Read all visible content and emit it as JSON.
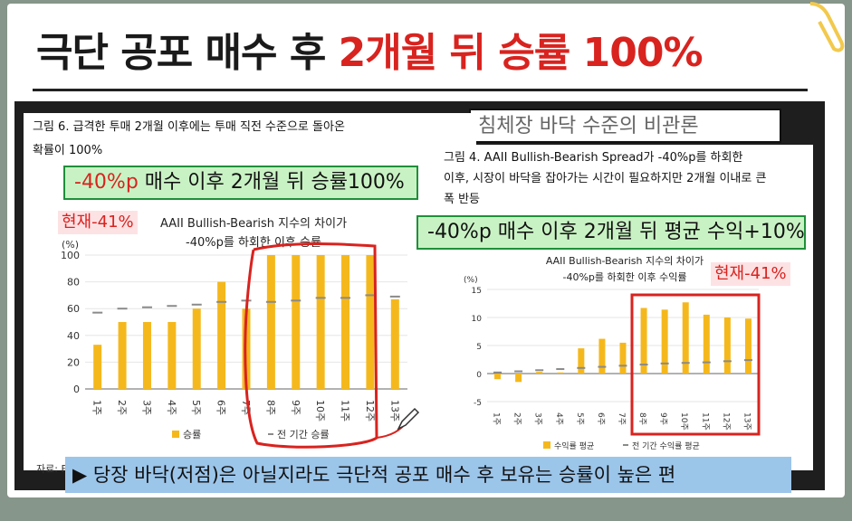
{
  "title": {
    "main": "극단 공포 매수 후 ",
    "highlight": "2개월 뒤 승률 100%"
  },
  "banner_partial": "침체장 바닥 수준의 비관론",
  "left": {
    "caption_line1": "그림 6. 급격한 투매 2개월 이후에는 투매 직전 수준으로 돌아온",
    "caption_line2": "확률이 100%",
    "green_note_red": "-40%p",
    "green_note_rest": " 매수 이후 2개월 뒤 승률100%",
    "current_tag": "현재-41%",
    "subtitle1": "AAII Bullish-Bearish 지수의 차이가",
    "subtitle2": "-40%p를 하회한 이후 승률",
    "source": "자료: F"
  },
  "right": {
    "caption_line1": "그림 4. AAII Bullish-Bearish Spread가 -40%p를 하회한",
    "caption_line2": "이후, 시장이 바닥을 잡아가는 시간이 필요하지만 2개월 이내로 큰",
    "caption_line3": "폭 반등",
    "green_note": "-40%p 매수 이후 2개월 뒤 평균 수익+10%",
    "current_tag": "현재-41%",
    "subtitle1": "AAII Bullish-Bearish 지수의 차이가",
    "subtitle2": "-40%p를 하회한 이후 수익률"
  },
  "bottom_band": "▶ 당장 바닥(저점)은 아닐지라도 극단적 공포 매수 후 보유는 승률이 높은 편",
  "colors": {
    "bar": "#f5b81c",
    "avg": "#8a8a8a",
    "highlight_red": "#d8231f",
    "green_border": "#1f8f3a"
  },
  "chart_data": [
    {
      "type": "bar",
      "unit": "(%)",
      "categories": [
        "1주",
        "2주",
        "3주",
        "4주",
        "5주",
        "6주",
        "7주",
        "8주",
        "9주",
        "10주",
        "11주",
        "12주",
        "13주"
      ],
      "series": [
        {
          "name": "승률",
          "values": [
            33,
            50,
            50,
            50,
            60,
            80,
            60,
            100,
            100,
            100,
            100,
            100,
            67
          ]
        },
        {
          "name": "전 기간 승률",
          "values": [
            57,
            60,
            61,
            62,
            63,
            65,
            66,
            65,
            66,
            68,
            68,
            70,
            69
          ]
        }
      ],
      "ylim": [
        0,
        100
      ],
      "yticks": [
        0,
        20,
        40,
        60,
        80,
        100
      ]
    },
    {
      "type": "bar",
      "unit": "(%)",
      "categories": [
        "1주",
        "2주",
        "3주",
        "4주",
        "5주",
        "6주",
        "7주",
        "8주",
        "9주",
        "10주",
        "11주",
        "12주",
        "13주"
      ],
      "series": [
        {
          "name": "수익률 평균",
          "values": [
            -1.0,
            -1.5,
            0.3,
            0.2,
            4.5,
            6.2,
            5.5,
            11.7,
            11.4,
            12.7,
            10.5,
            10.0,
            9.8
          ]
        },
        {
          "name": "전 기간 수익률 평균",
          "values": [
            0.2,
            0.4,
            0.6,
            0.8,
            1.0,
            1.2,
            1.4,
            1.6,
            1.8,
            1.9,
            2.0,
            2.2,
            2.4
          ]
        }
      ],
      "ylim": [
        -5,
        15
      ],
      "yticks": [
        -5,
        0,
        5,
        10,
        15
      ]
    }
  ]
}
